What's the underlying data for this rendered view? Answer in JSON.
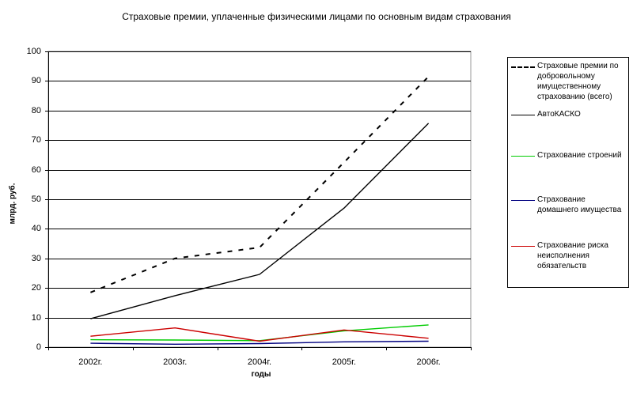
{
  "chart_data": {
    "type": "line",
    "title": "Страховые премии, уплаченные физическими лицами по основным видам страхования",
    "xlabel": "годы",
    "ylabel": "млрд. руб.",
    "ylim": [
      0,
      100
    ],
    "yticks": [
      "0",
      "10",
      "20",
      "30",
      "40",
      "50",
      "60",
      "70",
      "80",
      "90",
      "100"
    ],
    "categories": [
      "2002г.",
      "2003г.",
      "2004г.",
      "2005г.",
      "2006г."
    ],
    "grid": true,
    "legend_position": "right",
    "series": [
      {
        "name": "Страховые премии по добровольному имущественному страхованию (всего)",
        "color": "#000000",
        "style": "dashed",
        "values": [
          18.5,
          30,
          33.7,
          62.5,
          91.5
        ]
      },
      {
        "name": "АвтоКАСКО",
        "color": "#000000",
        "style": "solid",
        "values": [
          9.6,
          17.4,
          24.6,
          47,
          75.7
        ]
      },
      {
        "name": "Страхование строений",
        "color": "#00cc00",
        "style": "solid",
        "values": [
          2.5,
          2.4,
          2.2,
          5.5,
          7.5
        ]
      },
      {
        "name": "Страхование домашнего имущества",
        "color": "#000080",
        "style": "solid",
        "values": [
          1.3,
          1.0,
          1.2,
          1.8,
          2.0
        ]
      },
      {
        "name": "Страхование риска неисполнения обязательств",
        "color": "#cc0000",
        "style": "solid",
        "values": [
          3.7,
          6.5,
          2.0,
          5.8,
          3.0
        ]
      }
    ]
  },
  "legend": {
    "items": [
      {
        "label": "Страховые премии по добровольному имущественному страхованию (всего)"
      },
      {
        "label": "АвтоКАСКО"
      },
      {
        "label": "Страхование строений"
      },
      {
        "label": "Страхование домашнего имущества"
      },
      {
        "label": "Страхование риска неисполнения обязательств"
      }
    ]
  }
}
